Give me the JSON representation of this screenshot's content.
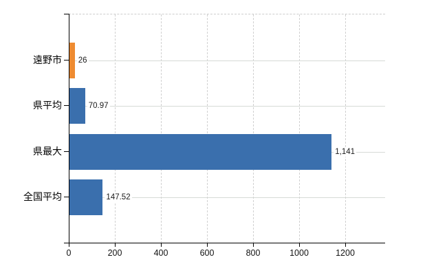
{
  "chart_data": {
    "type": "bar",
    "orientation": "horizontal",
    "title": "",
    "xlabel": "",
    "ylabel": "",
    "categories": [
      "遠野市",
      "県平均",
      "県最大",
      "全国平均"
    ],
    "values": [
      26,
      70.97,
      1141,
      147.52
    ],
    "value_labels": [
      "26",
      "70.97",
      "1,141",
      "147.52"
    ],
    "bar_colors": [
      "#ee8b31",
      "#3a6fad",
      "#3a6fad",
      "#3a6fad"
    ],
    "series": [
      {
        "name": "遠野市",
        "value": 26,
        "color": "#ee8b31"
      },
      {
        "name": "県平均",
        "value": 70.97,
        "color": "#3a6fad"
      },
      {
        "name": "県最大",
        "value": 1141,
        "color": "#3a6fad"
      },
      {
        "name": "全国平均",
        "value": 147.52,
        "color": "#3a6fad"
      }
    ],
    "x_ticks": [
      0,
      200,
      400,
      600,
      800,
      1000,
      1200
    ],
    "x_tick_labels": [
      "0",
      "200",
      "400",
      "600",
      "800",
      "1000",
      "1200"
    ],
    "xlim": [
      0,
      1373
    ],
    "legend": "none",
    "grid": {
      "vertical_style": "dashed",
      "horizontal_style": "solid"
    },
    "colors": {
      "background": "#ffffff",
      "axis": "#000000",
      "vertical_gridline": "#d0d0d0",
      "horizontal_gridline": "#d6dad6",
      "text": "#1a1a1a",
      "highlight_bar": "#ee8b31",
      "default_bar": "#3a6fad"
    }
  }
}
